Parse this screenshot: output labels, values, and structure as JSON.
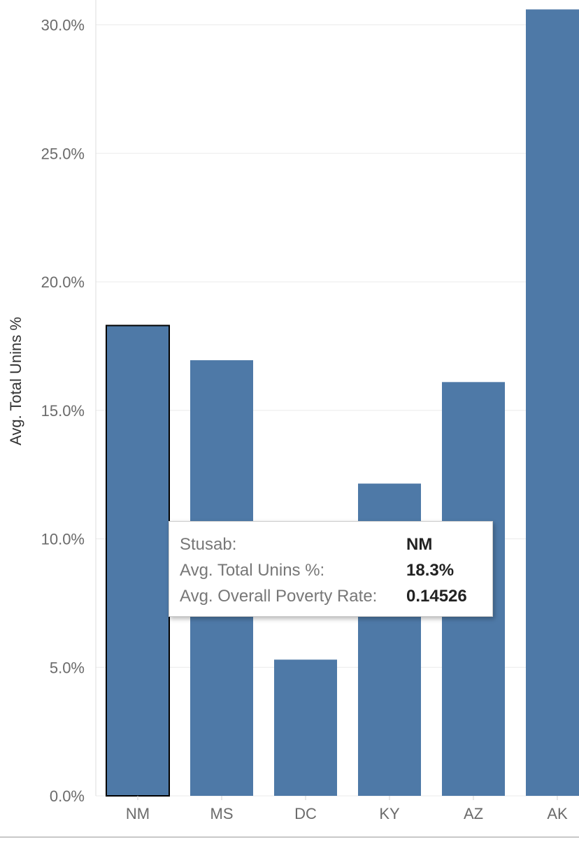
{
  "chart_data": {
    "type": "bar",
    "categories": [
      "NM",
      "MS",
      "DC",
      "KY",
      "AZ",
      "AK"
    ],
    "values": [
      18.3,
      16.95,
      5.3,
      12.15,
      16.1,
      30.6
    ],
    "ylabel": "Avg. Total Unins %",
    "xlabel": "",
    "ylim": [
      0,
      31
    ],
    "yticks": [
      "0.0%",
      "5.0%",
      "10.0%",
      "15.0%",
      "20.0%",
      "25.0%",
      "30.0%"
    ],
    "ytick_values": [
      0,
      5,
      10,
      15,
      20,
      25,
      30
    ],
    "grid": true,
    "selected_category": "NM",
    "colors": {
      "bar": "#4e79a7",
      "selected_outline": "#000000",
      "grid": "#ebebeb"
    }
  },
  "tooltip": {
    "rows": [
      {
        "key": "Stusab:",
        "value": "NM"
      },
      {
        "key": "Avg. Total Unins %:",
        "value": "18.3%"
      },
      {
        "key": "Avg. Overall Poverty Rate:",
        "value": "0.14526"
      }
    ]
  }
}
